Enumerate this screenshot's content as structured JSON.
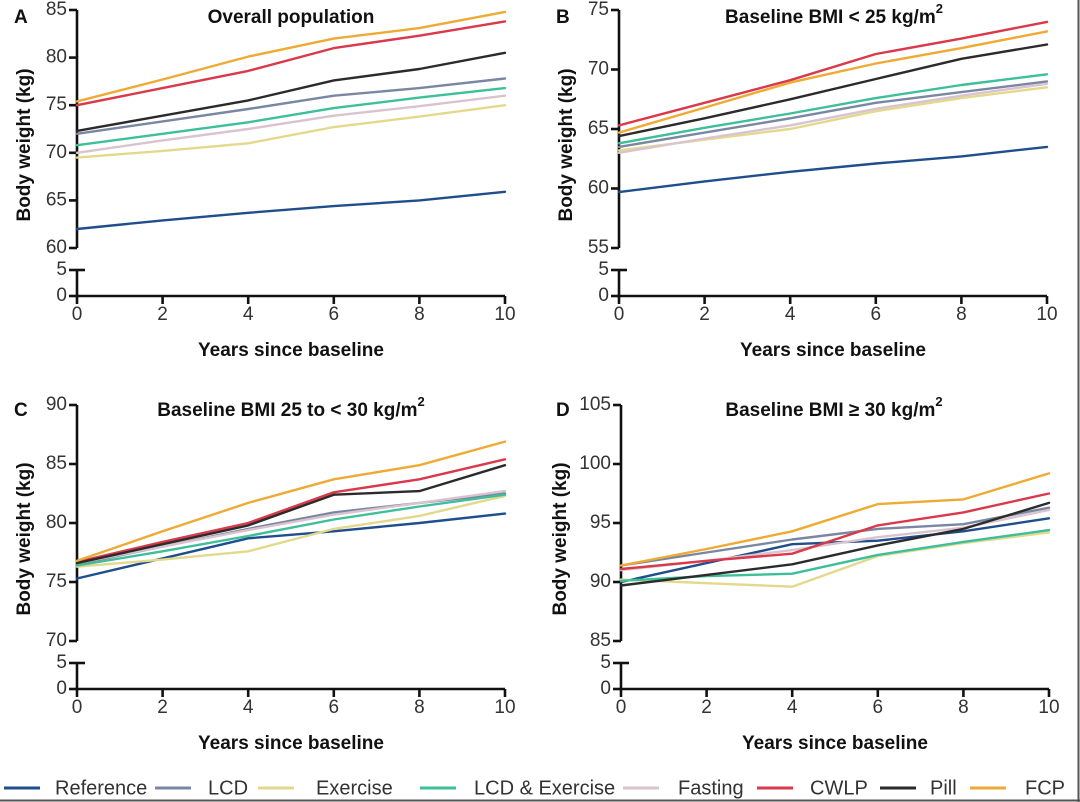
{
  "chart_data": {
    "type": "line",
    "legend": {
      "placement": "bottom",
      "entries": [
        {
          "name": "Reference",
          "color": "#1f4e8c"
        },
        {
          "name": "LCD",
          "color": "#7a87a3"
        },
        {
          "name": "Exercise",
          "color": "#e3d98c"
        },
        {
          "name": "LCD & Exercise",
          "color": "#3dbf9a"
        },
        {
          "name": "Fasting",
          "color": "#d9c3cf"
        },
        {
          "name": "CWLP",
          "color": "#d9394a"
        },
        {
          "name": "Pill",
          "color": "#2b2b2b"
        },
        {
          "name": "FCP",
          "color": "#eeaa33"
        }
      ]
    },
    "panels": [
      {
        "letter": "A",
        "title": "Overall population",
        "title_sup": "",
        "xlabel": "Years since baseline",
        "ylabel": "Body weight (kg)",
        "x": [
          0,
          2,
          4,
          6,
          8,
          10
        ],
        "xticks": [
          "0",
          "2",
          "4",
          "6",
          "8",
          "10"
        ],
        "ylim": [
          60,
          85
        ],
        "yticks": [
          "60",
          "65",
          "70",
          "75",
          "80",
          "85"
        ],
        "break_ticks": [
          "0",
          "5"
        ],
        "grid": false,
        "series": [
          {
            "name": "Reference",
            "values": [
              62.0,
              62.9,
              63.7,
              64.4,
              65.0,
              65.9
            ]
          },
          {
            "name": "LCD",
            "values": [
              72.0,
              73.3,
              74.6,
              76.0,
              76.8,
              77.8
            ]
          },
          {
            "name": "Exercise",
            "values": [
              69.5,
              70.2,
              71.0,
              72.7,
              73.8,
              75.0
            ]
          },
          {
            "name": "LCD & Exercise",
            "values": [
              70.8,
              72.0,
              73.2,
              74.7,
              75.8,
              76.8
            ]
          },
          {
            "name": "Fasting",
            "values": [
              70.0,
              71.3,
              72.5,
              73.9,
              74.9,
              76.0
            ]
          },
          {
            "name": "CWLP",
            "values": [
              75.0,
              76.8,
              78.6,
              81.0,
              82.3,
              83.8
            ]
          },
          {
            "name": "Pill",
            "values": [
              72.3,
              73.9,
              75.5,
              77.6,
              78.8,
              80.5
            ]
          },
          {
            "name": "FCP",
            "values": [
              75.4,
              77.7,
              80.1,
              82.0,
              83.1,
              84.8
            ]
          }
        ]
      },
      {
        "letter": "B",
        "title": "Baseline BMI < 25 kg/m",
        "title_sup": "2",
        "xlabel": "Years since baseline",
        "ylabel": "Body weight (kg)",
        "x": [
          0,
          2,
          4,
          6,
          8,
          10
        ],
        "xticks": [
          "0",
          "2",
          "4",
          "6",
          "8",
          "10"
        ],
        "ylim": [
          55,
          75
        ],
        "yticks": [
          "55",
          "60",
          "65",
          "70",
          "75"
        ],
        "break_ticks": [
          "0",
          "5"
        ],
        "grid": false,
        "series": [
          {
            "name": "Reference",
            "values": [
              59.7,
              60.6,
              61.4,
              62.1,
              62.7,
              63.5
            ]
          },
          {
            "name": "LCD",
            "values": [
              63.5,
              64.7,
              65.9,
              67.2,
              68.1,
              69.0
            ]
          },
          {
            "name": "Exercise",
            "values": [
              63.2,
              64.1,
              65.0,
              66.5,
              67.6,
              68.5
            ]
          },
          {
            "name": "LCD & Exercise",
            "values": [
              63.8,
              65.1,
              66.3,
              67.6,
              68.7,
              69.6
            ]
          },
          {
            "name": "Fasting",
            "values": [
              63.0,
              64.2,
              65.3,
              66.7,
              67.8,
              68.8
            ]
          },
          {
            "name": "CWLP",
            "values": [
              65.3,
              67.2,
              69.1,
              71.3,
              72.6,
              74.0
            ]
          },
          {
            "name": "Pill",
            "values": [
              64.4,
              65.9,
              67.5,
              69.2,
              70.9,
              72.1
            ]
          },
          {
            "name": "FCP",
            "values": [
              64.7,
              66.8,
              68.9,
              70.5,
              71.8,
              73.2
            ]
          }
        ]
      },
      {
        "letter": "C",
        "title": "Baseline BMI 25 to < 30 kg/m",
        "title_sup": "2",
        "xlabel": "Years since baseline",
        "ylabel": "Body weight (kg)",
        "x": [
          0,
          2,
          4,
          6,
          8,
          10
        ],
        "xticks": [
          "0",
          "2",
          "4",
          "6",
          "8",
          "10"
        ],
        "ylim": [
          70,
          90
        ],
        "yticks": [
          "70",
          "75",
          "80",
          "85",
          "90"
        ],
        "break_ticks": [
          "0",
          "5"
        ],
        "grid": false,
        "series": [
          {
            "name": "Reference",
            "values": [
              75.3,
              77.0,
              78.7,
              79.3,
              80.0,
              80.8
            ]
          },
          {
            "name": "LCD",
            "values": [
              76.5,
              78.0,
              79.5,
              80.9,
              81.7,
              82.5
            ]
          },
          {
            "name": "Exercise",
            "values": [
              76.3,
              76.9,
              77.6,
              79.5,
              80.6,
              82.3
            ]
          },
          {
            "name": "LCD & Exercise",
            "values": [
              76.4,
              77.6,
              78.9,
              80.3,
              81.4,
              82.4
            ]
          },
          {
            "name": "Fasting",
            "values": [
              76.6,
              78.0,
              79.4,
              80.7,
              81.7,
              82.7
            ]
          },
          {
            "name": "CWLP",
            "values": [
              76.7,
              78.4,
              80.0,
              82.6,
              83.7,
              85.4
            ]
          },
          {
            "name": "Pill",
            "values": [
              76.6,
              78.2,
              79.8,
              82.4,
              82.7,
              84.9
            ]
          },
          {
            "name": "FCP",
            "values": [
              76.8,
              79.3,
              81.7,
              83.7,
              84.9,
              86.9
            ]
          }
        ]
      },
      {
        "letter": "D",
        "title": "Baseline BMI ≥ 30 kg/m",
        "title_sup": "2",
        "xlabel": "Years since baseline",
        "ylabel": "Body weight (kg)",
        "x": [
          0,
          2,
          4,
          6,
          8,
          10
        ],
        "xticks": [
          "0",
          "2",
          "4",
          "6",
          "8",
          "10"
        ],
        "ylim": [
          85,
          105
        ],
        "yticks": [
          "85",
          "90",
          "95",
          "100",
          "105"
        ],
        "break_ticks": [
          "0",
          "5"
        ],
        "grid": false,
        "series": [
          {
            "name": "Reference",
            "values": [
              90.0,
              91.6,
              93.2,
              93.5,
              94.3,
              95.4
            ]
          },
          {
            "name": "LCD",
            "values": [
              91.4,
              92.5,
              93.6,
              94.5,
              94.9,
              96.3
            ]
          },
          {
            "name": "Exercise",
            "values": [
              90.2,
              89.9,
              89.6,
              92.2,
              93.3,
              94.2
            ]
          },
          {
            "name": "LCD & Exercise",
            "values": [
              90.1,
              90.5,
              90.7,
              92.3,
              93.4,
              94.4
            ]
          },
          {
            "name": "Fasting",
            "values": [
              91.0,
              91.8,
              92.7,
              93.8,
              94.6,
              96.1
            ]
          },
          {
            "name": "CWLP",
            "values": [
              91.1,
              91.8,
              92.4,
              94.8,
              95.9,
              97.5
            ]
          },
          {
            "name": "Pill",
            "values": [
              89.7,
              90.6,
              91.5,
              93.1,
              94.5,
              96.7
            ]
          },
          {
            "name": "FCP",
            "values": [
              91.4,
              92.8,
              94.3,
              96.6,
              97.0,
              99.2
            ]
          }
        ]
      }
    ]
  }
}
